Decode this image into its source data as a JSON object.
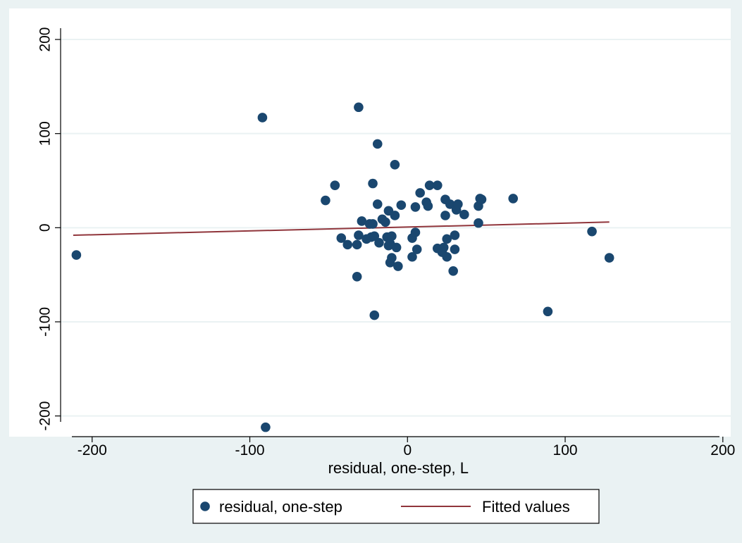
{
  "chart_data": {
    "type": "scatter",
    "title": "",
    "xlabel": "residual, one-step, L",
    "ylabel": "",
    "xlim": [
      -220,
      205
    ],
    "ylim": [
      -222,
      212
    ],
    "x_ticks": [
      -200,
      -100,
      0,
      100,
      200
    ],
    "y_ticks": [
      -200,
      -100,
      0,
      100,
      200
    ],
    "x_tick_labels": [
      "-200",
      "-100",
      "0",
      "100",
      "200"
    ],
    "y_tick_labels": [
      "-200",
      "-100",
      "0",
      "100",
      "200"
    ],
    "grid": "horizontal",
    "legend_position": "bottom",
    "colors": {
      "outer_background": "#eaf2f3",
      "plot_background": "#ffffff",
      "gridline": "#eaf2f3",
      "markers": "#1a476f",
      "fit_line": "#90353b"
    },
    "series": [
      {
        "name": "residual, one-step",
        "kind": "scatter",
        "points": [
          [
            -210,
            -29
          ],
          [
            -92,
            117
          ],
          [
            -90,
            -212
          ],
          [
            -52,
            29
          ],
          [
            -46,
            45
          ],
          [
            -42,
            -11
          ],
          [
            -38,
            -18
          ],
          [
            -32,
            -18
          ],
          [
            -32,
            -52
          ],
          [
            -31,
            -8
          ],
          [
            -31,
            128
          ],
          [
            -29,
            7
          ],
          [
            -26,
            -12
          ],
          [
            -24,
            4
          ],
          [
            -23,
            -10
          ],
          [
            -22,
            4
          ],
          [
            -22,
            47
          ],
          [
            -21,
            -9
          ],
          [
            -21,
            -93
          ],
          [
            -19,
            25
          ],
          [
            -19,
            89
          ],
          [
            -18,
            -16
          ],
          [
            -16,
            9
          ],
          [
            -14,
            6
          ],
          [
            -13,
            -10
          ],
          [
            -12,
            -19
          ],
          [
            -12,
            18
          ],
          [
            -11,
            -17
          ],
          [
            -11,
            -37
          ],
          [
            -10,
            -32
          ],
          [
            -10,
            -9
          ],
          [
            -8,
            67
          ],
          [
            -8,
            13
          ],
          [
            -7,
            -21
          ],
          [
            -6,
            -41
          ],
          [
            -4,
            24
          ],
          [
            3,
            -31
          ],
          [
            3,
            -11
          ],
          [
            5,
            -5
          ],
          [
            5,
            22
          ],
          [
            6,
            -23
          ],
          [
            8,
            37
          ],
          [
            12,
            27
          ],
          [
            13,
            23
          ],
          [
            14,
            45
          ],
          [
            19,
            -22
          ],
          [
            19,
            45
          ],
          [
            22,
            -26
          ],
          [
            23,
            -21
          ],
          [
            24,
            30
          ],
          [
            24,
            13
          ],
          [
            25,
            -31
          ],
          [
            25,
            -12
          ],
          [
            27,
            25
          ],
          [
            29,
            -46
          ],
          [
            30,
            -23
          ],
          [
            30,
            -8
          ],
          [
            31,
            19
          ],
          [
            32,
            25
          ],
          [
            36,
            14
          ],
          [
            45,
            5
          ],
          [
            45,
            23
          ],
          [
            46,
            31
          ],
          [
            47,
            30
          ],
          [
            67,
            31
          ],
          [
            89,
            -89
          ],
          [
            117,
            -4
          ],
          [
            128,
            -32
          ]
        ]
      },
      {
        "name": "Fitted values",
        "kind": "line",
        "points": [
          [
            -212,
            -8
          ],
          [
            128,
            6
          ]
        ]
      }
    ]
  }
}
